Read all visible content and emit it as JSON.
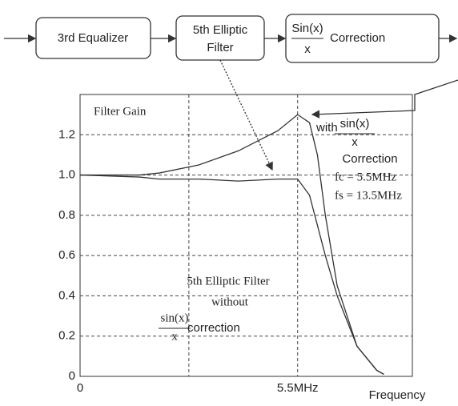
{
  "diagram": {
    "blocks": [
      {
        "lines": [
          "3rd Equalizer"
        ]
      },
      {
        "lines": [
          "5th Elliptic",
          "Filter"
        ]
      },
      {
        "numerator": "Sin(x)",
        "denominator": "x",
        "label": "Correction"
      }
    ]
  },
  "chart_data": {
    "type": "line",
    "title": "Filter Gain",
    "x_label": "Frequency",
    "x": [
      0,
      1.5,
      2,
      3,
      4,
      5,
      5.5,
      5.8,
      6,
      6.2,
      6.5,
      7,
      7.5,
      7.68
    ],
    "series": [
      {
        "color": "#333",
        "values": [
          1.0,
          1.0,
          1.01,
          1.05,
          1.12,
          1.22,
          1.3,
          1.26,
          1.1,
          0.8,
          0.45,
          0.15,
          0.03,
          0.01
        ]
      },
      {
        "color": "#333",
        "values": [
          1.0,
          0.99,
          0.98,
          0.98,
          0.97,
          0.98,
          0.98,
          0.9,
          0.75,
          0.6,
          0.4,
          0.15,
          0.03,
          0.01
        ]
      }
    ],
    "xlim": [
      0,
      8.4
    ],
    "ylim": [
      0,
      1.4
    ],
    "xticks": [
      0,
      {
        "value": 2.75,
        "label": null
      },
      {
        "value": 5.5,
        "label": "5.5MHz"
      }
    ],
    "yticks": [
      0,
      0.2,
      0.4,
      0.6,
      0.8,
      {
        "value": 1,
        "label": "1.0"
      },
      1.2
    ],
    "grid": true,
    "annotations": [
      "with",
      "sin(x)",
      "x",
      "Correction",
      "fc = 5.5MHz",
      "fs = 13.5MHz",
      "5th Elliptic Filter",
      "without",
      "sin(x)",
      "x",
      "correction"
    ]
  }
}
